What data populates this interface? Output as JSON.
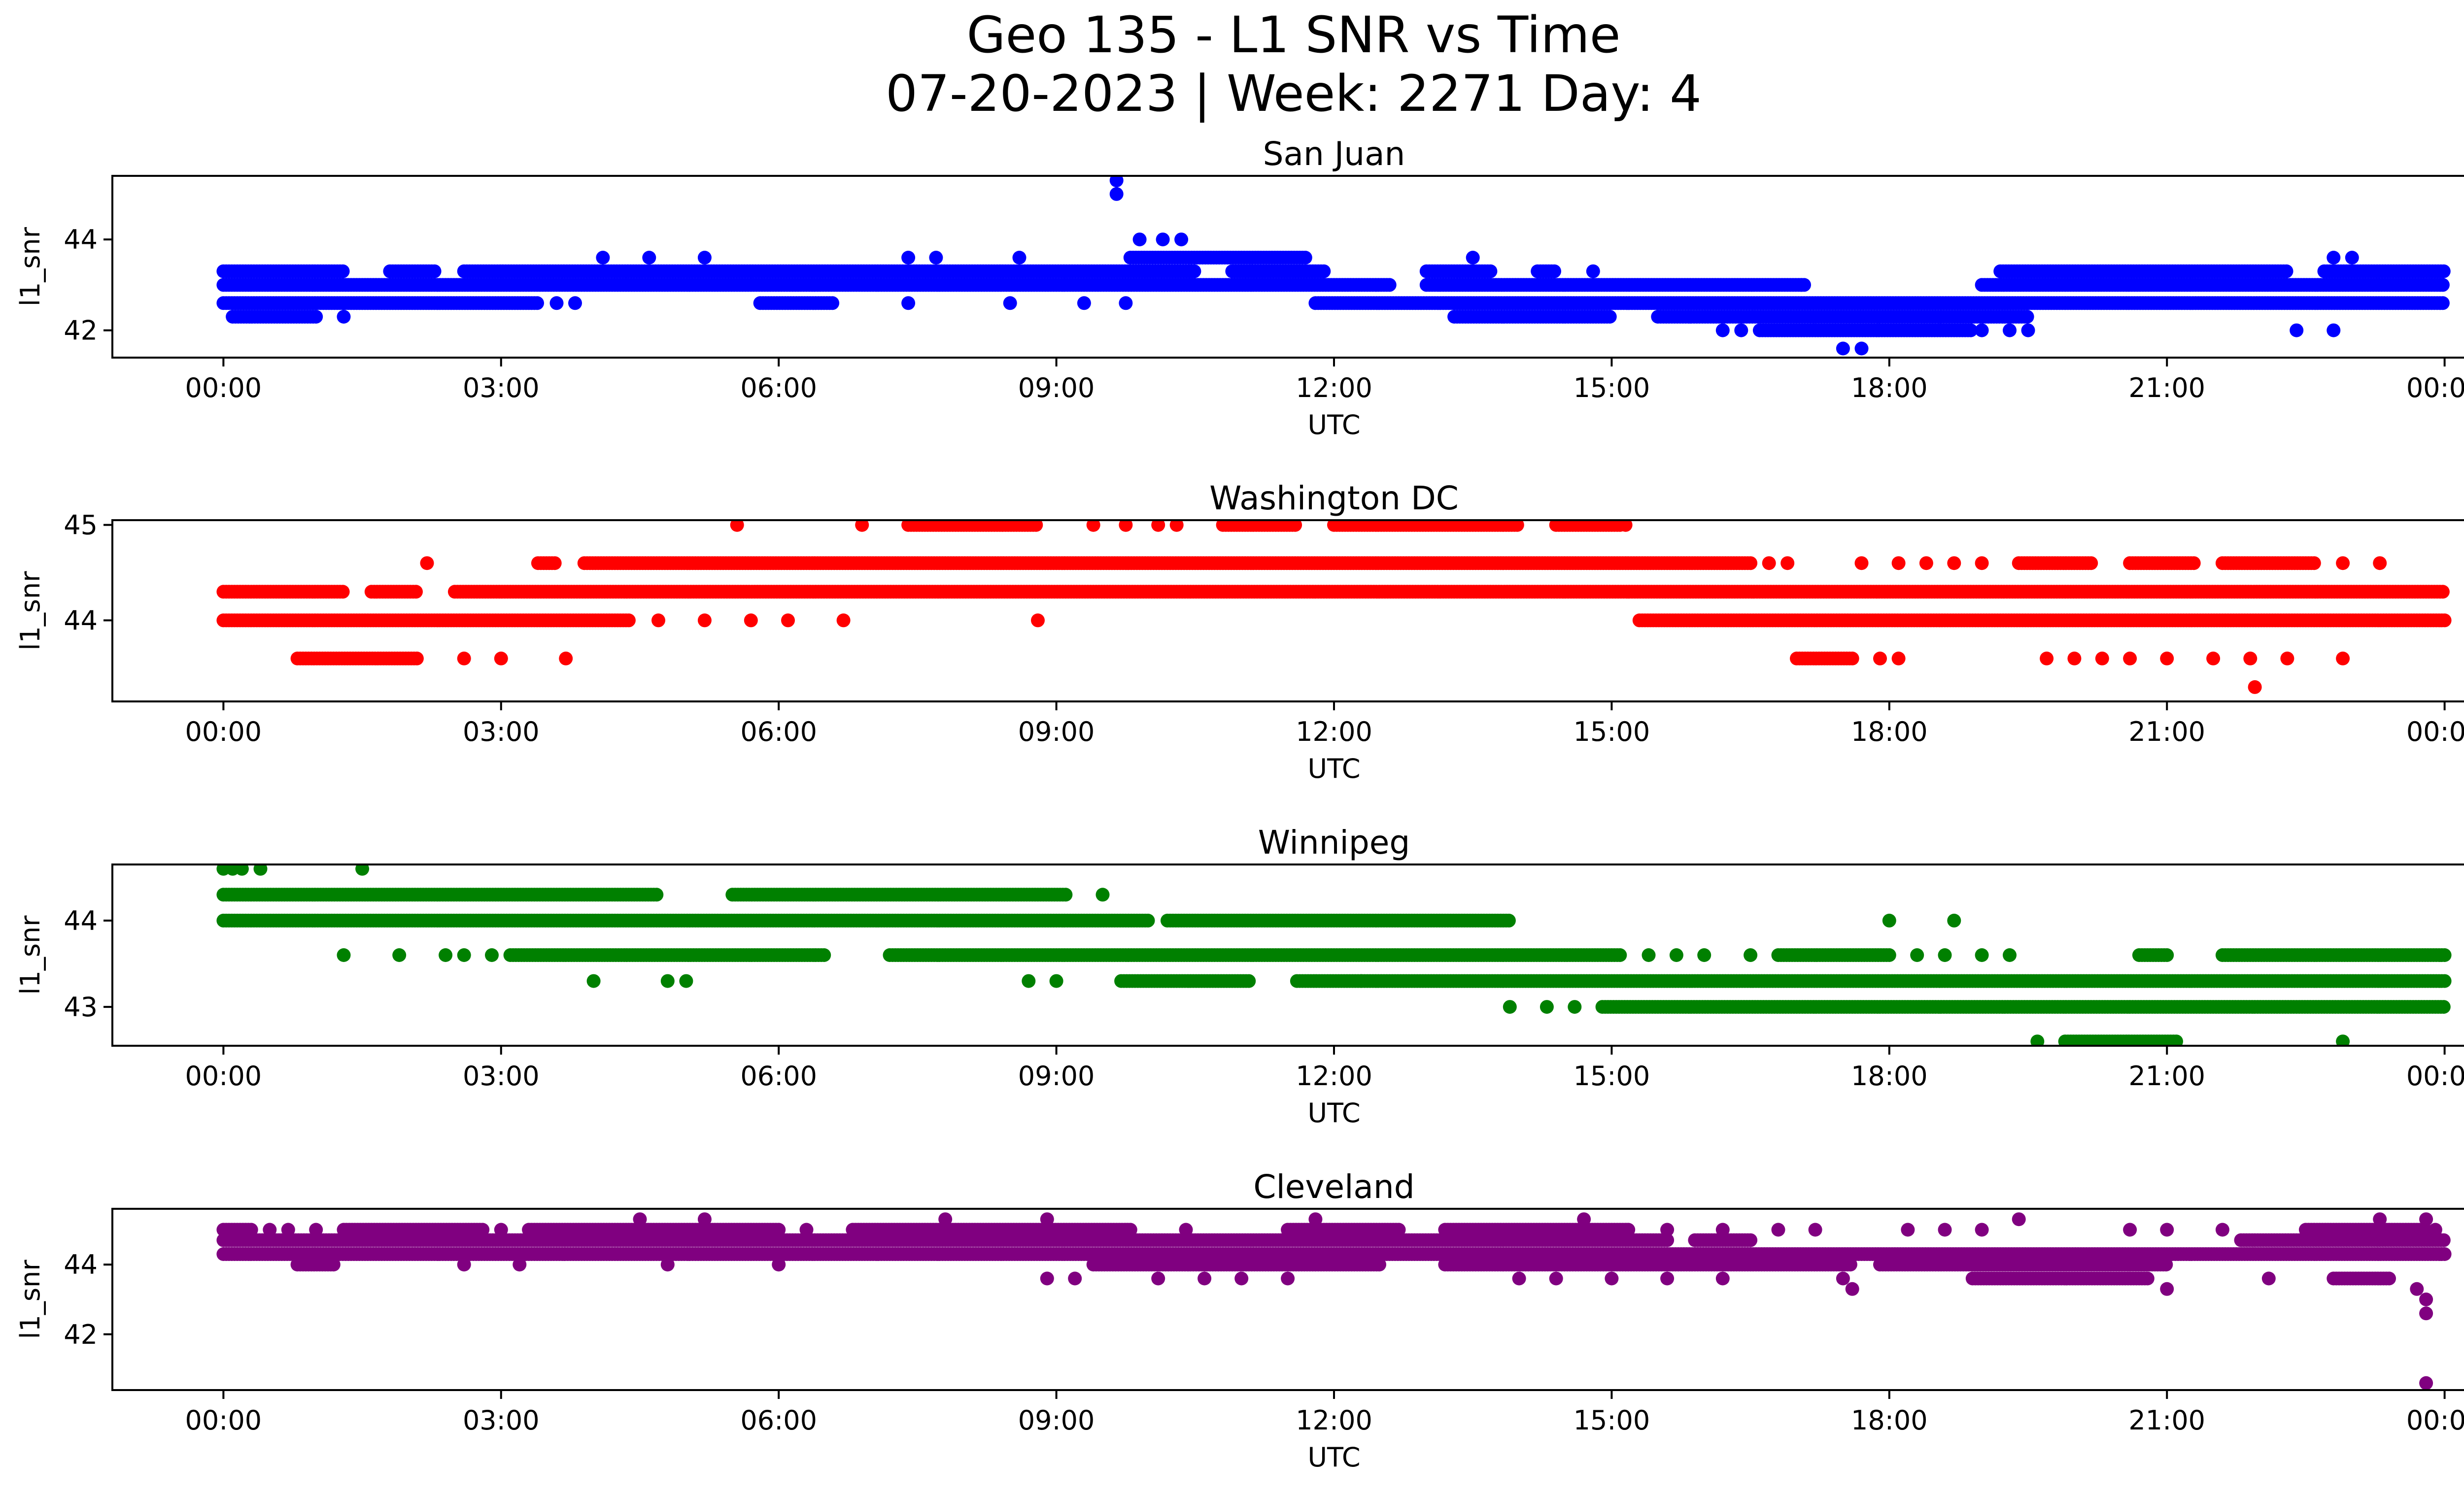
{
  "figure": {
    "title_line1": "Geo 135 - L1 SNR vs Time",
    "title_line2": "07-20-2023 | Week: 2271 Day: 4"
  },
  "chart_data": [
    {
      "type": "scatter",
      "title": "San Juan",
      "xlabel": "UTC",
      "ylabel": "l1_snr",
      "color": "#0000ff",
      "x_unit": "hours UTC",
      "xlim_hours": [
        -1.2,
        25.2
      ],
      "ylim": [
        41.4,
        45.4
      ],
      "yticks": [
        42,
        44
      ],
      "xticklabels": [
        "00:00",
        "03:00",
        "06:00",
        "09:00",
        "12:00",
        "15:00",
        "18:00",
        "21:00",
        "00:00"
      ],
      "bands": [
        {
          "y": 43.3,
          "segments": [
            [
              0.0,
              1.3
            ],
            [
              1.8,
              2.3
            ],
            [
              2.6,
              10.5
            ],
            [
              10.9,
              11.9
            ],
            [
              13.0,
              13.7
            ],
            [
              14.2,
              14.4
            ],
            [
              19.2,
              22.3
            ],
            [
              22.7,
              24.0
            ]
          ]
        },
        {
          "y": 43.0,
          "segments": [
            [
              0.0,
              12.6
            ],
            [
              13.0,
              17.1
            ],
            [
              19.0,
              24.0
            ]
          ]
        },
        {
          "y": 42.6,
          "segments": [
            [
              0.0,
              3.4
            ],
            [
              5.8,
              6.6
            ],
            [
              11.8,
              24.0
            ]
          ]
        },
        {
          "y": 42.3,
          "segments": [
            [
              0.1,
              1.0
            ],
            [
              13.3,
              15.0
            ],
            [
              15.5,
              19.5
            ]
          ]
        },
        {
          "y": 42.0,
          "segments": [
            [
              16.6,
              18.9
            ]
          ]
        },
        {
          "y": 43.6,
          "segments": [
            [
              9.8,
              11.7
            ]
          ]
        }
      ],
      "points": [
        {
          "x": 9.65,
          "y": 45.3
        },
        {
          "x": 9.65,
          "y": 45.0
        },
        {
          "x": 10.15,
          "y": 44.0
        },
        {
          "x": 10.35,
          "y": 44.0
        },
        {
          "x": 9.9,
          "y": 44.0
        },
        {
          "x": 4.1,
          "y": 43.6
        },
        {
          "x": 4.6,
          "y": 43.6
        },
        {
          "x": 5.2,
          "y": 43.6
        },
        {
          "x": 7.4,
          "y": 43.6
        },
        {
          "x": 7.7,
          "y": 43.6
        },
        {
          "x": 8.6,
          "y": 43.6
        },
        {
          "x": 13.5,
          "y": 43.6
        },
        {
          "x": 22.8,
          "y": 43.6
        },
        {
          "x": 23.0,
          "y": 43.6
        },
        {
          "x": 14.8,
          "y": 43.3
        },
        {
          "x": 3.6,
          "y": 42.6
        },
        {
          "x": 3.8,
          "y": 42.6
        },
        {
          "x": 7.4,
          "y": 42.6
        },
        {
          "x": 8.5,
          "y": 42.6
        },
        {
          "x": 9.3,
          "y": 42.6
        },
        {
          "x": 9.75,
          "y": 42.6
        },
        {
          "x": 1.3,
          "y": 42.3
        },
        {
          "x": 16.2,
          "y": 42.0
        },
        {
          "x": 16.4,
          "y": 42.0
        },
        {
          "x": 19.0,
          "y": 42.0
        },
        {
          "x": 19.3,
          "y": 42.0
        },
        {
          "x": 19.5,
          "y": 42.0
        },
        {
          "x": 22.4,
          "y": 42.0
        },
        {
          "x": 22.8,
          "y": 42.0
        },
        {
          "x": 17.5,
          "y": 41.6
        },
        {
          "x": 17.7,
          "y": 41.6
        },
        {
          "x": 17.05,
          "y": 43.0
        }
      ]
    },
    {
      "type": "scatter",
      "title": "Washington DC",
      "xlabel": "UTC",
      "ylabel": "l1_snr",
      "color": "#ff0000",
      "x_unit": "hours UTC",
      "xlim_hours": [
        -1.2,
        25.2
      ],
      "ylim": [
        43.15,
        45.05
      ],
      "yticks": [
        44,
        45
      ],
      "xticklabels": [
        "00:00",
        "03:00",
        "06:00",
        "09:00",
        "12:00",
        "15:00",
        "18:00",
        "21:00",
        "00:00"
      ],
      "bands": [
        {
          "y": 45.0,
          "segments": [
            [
              7.4,
              8.8
            ],
            [
              10.8,
              11.6
            ],
            [
              12.0,
              14.0
            ],
            [
              14.4,
              15.1
            ]
          ]
        },
        {
          "y": 44.6,
          "segments": [
            [
              3.4,
              3.6
            ],
            [
              3.9,
              16.5
            ],
            [
              19.4,
              20.2
            ],
            [
              20.6,
              21.3
            ],
            [
              21.6,
              22.6
            ]
          ]
        },
        {
          "y": 44.3,
          "segments": [
            [
              0.0,
              1.3
            ],
            [
              1.6,
              2.1
            ],
            [
              2.5,
              24.0
            ]
          ]
        },
        {
          "y": 44.0,
          "segments": [
            [
              0.0,
              4.4
            ],
            [
              15.3,
              24.0
            ]
          ]
        },
        {
          "y": 43.6,
          "segments": [
            [
              0.8,
              2.1
            ],
            [
              17.0,
              17.6
            ]
          ]
        }
      ],
      "points": [
        {
          "x": 5.55,
          "y": 45.0
        },
        {
          "x": 6.9,
          "y": 45.0
        },
        {
          "x": 9.4,
          "y": 45.0
        },
        {
          "x": 9.75,
          "y": 45.0
        },
        {
          "x": 10.1,
          "y": 45.0
        },
        {
          "x": 10.3,
          "y": 45.0
        },
        {
          "x": 15.15,
          "y": 45.0
        },
        {
          "x": 2.2,
          "y": 44.6
        },
        {
          "x": 16.7,
          "y": 44.6
        },
        {
          "x": 16.9,
          "y": 44.6
        },
        {
          "x": 17.7,
          "y": 44.6
        },
        {
          "x": 18.1,
          "y": 44.6
        },
        {
          "x": 18.4,
          "y": 44.6
        },
        {
          "x": 18.7,
          "y": 44.6
        },
        {
          "x": 19.0,
          "y": 44.6
        },
        {
          "x": 22.9,
          "y": 44.6
        },
        {
          "x": 23.3,
          "y": 44.6
        },
        {
          "x": 4.7,
          "y": 44.0
        },
        {
          "x": 5.2,
          "y": 44.0
        },
        {
          "x": 5.7,
          "y": 44.0
        },
        {
          "x": 6.1,
          "y": 44.0
        },
        {
          "x": 6.7,
          "y": 44.0
        },
        {
          "x": 8.8,
          "y": 44.0
        },
        {
          "x": 2.6,
          "y": 43.6
        },
        {
          "x": 3.0,
          "y": 43.6
        },
        {
          "x": 3.7,
          "y": 43.6
        },
        {
          "x": 17.9,
          "y": 43.6
        },
        {
          "x": 18.1,
          "y": 43.6
        },
        {
          "x": 19.7,
          "y": 43.6
        },
        {
          "x": 20.0,
          "y": 43.6
        },
        {
          "x": 20.3,
          "y": 43.6
        },
        {
          "x": 20.6,
          "y": 43.6
        },
        {
          "x": 21.0,
          "y": 43.6
        },
        {
          "x": 21.5,
          "y": 43.6
        },
        {
          "x": 21.9,
          "y": 43.6
        },
        {
          "x": 22.3,
          "y": 43.6
        },
        {
          "x": 22.9,
          "y": 43.6
        },
        {
          "x": 21.95,
          "y": 43.3
        }
      ]
    },
    {
      "type": "scatter",
      "title": "Winnipeg",
      "xlabel": "UTC",
      "ylabel": "l1_snr",
      "color": "#008000",
      "x_unit": "hours UTC",
      "xlim_hours": [
        -1.2,
        25.2
      ],
      "ylim": [
        42.55,
        44.65
      ],
      "yticks": [
        43,
        44
      ],
      "xticklabels": [
        "00:00",
        "03:00",
        "06:00",
        "09:00",
        "12:00",
        "15:00",
        "18:00",
        "21:00",
        "00:00"
      ],
      "bands": [
        {
          "y": 44.3,
          "segments": [
            [
              0.0,
              4.7
            ],
            [
              5.5,
              9.1
            ]
          ]
        },
        {
          "y": 44.0,
          "segments": [
            [
              0.0,
              10.0
            ],
            [
              10.2,
              13.9
            ]
          ]
        },
        {
          "y": 43.6,
          "segments": [
            [
              3.1,
              6.5
            ],
            [
              7.2,
              15.1
            ],
            [
              16.8,
              18.0
            ],
            [
              20.7,
              21.0
            ],
            [
              21.6,
              24.0
            ]
          ]
        },
        {
          "y": 43.3,
          "segments": [
            [
              9.7,
              11.1
            ],
            [
              11.6,
              12.3
            ],
            [
              12.3,
              24.0
            ]
          ]
        },
        {
          "y": 43.0,
          "segments": [
            [
              14.9,
              24.0
            ]
          ]
        },
        {
          "y": 42.6,
          "segments": [
            [
              19.9,
              21.1
            ]
          ]
        }
      ],
      "points": [
        {
          "x": 0.0,
          "y": 44.6
        },
        {
          "x": 0.1,
          "y": 44.6
        },
        {
          "x": 0.2,
          "y": 44.6
        },
        {
          "x": 0.4,
          "y": 44.6
        },
        {
          "x": 1.5,
          "y": 44.6
        },
        {
          "x": 9.5,
          "y": 44.3
        },
        {
          "x": 18.0,
          "y": 44.0
        },
        {
          "x": 18.7,
          "y": 44.0
        },
        {
          "x": 1.3,
          "y": 43.6
        },
        {
          "x": 1.9,
          "y": 43.6
        },
        {
          "x": 2.4,
          "y": 43.6
        },
        {
          "x": 2.6,
          "y": 43.6
        },
        {
          "x": 2.9,
          "y": 43.6
        },
        {
          "x": 15.4,
          "y": 43.6
        },
        {
          "x": 15.7,
          "y": 43.6
        },
        {
          "x": 16.0,
          "y": 43.6
        },
        {
          "x": 16.5,
          "y": 43.6
        },
        {
          "x": 18.3,
          "y": 43.6
        },
        {
          "x": 18.6,
          "y": 43.6
        },
        {
          "x": 19.0,
          "y": 43.6
        },
        {
          "x": 19.3,
          "y": 43.6
        },
        {
          "x": 4.0,
          "y": 43.3
        },
        {
          "x": 4.8,
          "y": 43.3
        },
        {
          "x": 5.0,
          "y": 43.3
        },
        {
          "x": 8.7,
          "y": 43.3
        },
        {
          "x": 9.0,
          "y": 43.3
        },
        {
          "x": 13.9,
          "y": 43.0
        },
        {
          "x": 14.3,
          "y": 43.0
        },
        {
          "x": 14.6,
          "y": 43.0
        },
        {
          "x": 19.6,
          "y": 42.6
        },
        {
          "x": 22.9,
          "y": 42.6
        }
      ]
    },
    {
      "type": "scatter",
      "title": "Cleveland",
      "xlabel": "UTC",
      "ylabel": "l1_snr",
      "color": "#800080",
      "x_unit": "hours UTC",
      "xlim_hours": [
        -1.2,
        25.2
      ],
      "ylim": [
        40.4,
        45.6
      ],
      "yticks": [
        42,
        44
      ],
      "xticklabels": [
        "00:00",
        "03:00",
        "06:00",
        "09:00",
        "12:00",
        "15:00",
        "18:00",
        "21:00",
        "00:00"
      ],
      "bands": [
        {
          "y": 45.0,
          "segments": [
            [
              0.0,
              0.3
            ],
            [
              1.3,
              2.8
            ],
            [
              3.3,
              6.0
            ],
            [
              6.8,
              9.8
            ],
            [
              11.5,
              12.7
            ],
            [
              13.2,
              15.2
            ],
            [
              22.5,
              23.8
            ]
          ]
        },
        {
          "y": 44.7,
          "segments": [
            [
              0.0,
              15.6
            ],
            [
              15.9,
              16.5
            ],
            [
              21.8,
              24.0
            ]
          ]
        },
        {
          "y": 44.3,
          "segments": [
            [
              0.0,
              24.0
            ]
          ]
        },
        {
          "y": 44.0,
          "segments": [
            [
              0.8,
              1.2
            ],
            [
              9.4,
              12.5
            ],
            [
              13.2,
              17.6
            ],
            [
              17.9,
              21.0
            ]
          ]
        },
        {
          "y": 43.6,
          "segments": [
            [
              18.9,
              20.8
            ],
            [
              22.8,
              23.4
            ]
          ]
        }
      ],
      "points": [
        {
          "x": 0.5,
          "y": 45.0
        },
        {
          "x": 0.7,
          "y": 45.0
        },
        {
          "x": 1.0,
          "y": 45.0
        },
        {
          "x": 3.0,
          "y": 45.0
        },
        {
          "x": 6.3,
          "y": 45.0
        },
        {
          "x": 10.4,
          "y": 45.0
        },
        {
          "x": 15.6,
          "y": 45.0
        },
        {
          "x": 16.2,
          "y": 45.0
        },
        {
          "x": 16.8,
          "y": 45.0
        },
        {
          "x": 17.2,
          "y": 45.0
        },
        {
          "x": 18.2,
          "y": 45.0
        },
        {
          "x": 18.6,
          "y": 45.0
        },
        {
          "x": 19.0,
          "y": 45.0
        },
        {
          "x": 20.6,
          "y": 45.0
        },
        {
          "x": 21.0,
          "y": 45.0
        },
        {
          "x": 21.6,
          "y": 45.0
        },
        {
          "x": 23.9,
          "y": 45.0
        },
        {
          "x": 4.5,
          "y": 45.3
        },
        {
          "x": 5.2,
          "y": 45.3
        },
        {
          "x": 7.8,
          "y": 45.3
        },
        {
          "x": 8.9,
          "y": 45.3
        },
        {
          "x": 11.8,
          "y": 45.3
        },
        {
          "x": 14.7,
          "y": 45.3
        },
        {
          "x": 19.4,
          "y": 45.3
        },
        {
          "x": 23.3,
          "y": 45.3
        },
        {
          "x": 23.8,
          "y": 45.3
        },
        {
          "x": 2.6,
          "y": 44.0
        },
        {
          "x": 3.2,
          "y": 44.0
        },
        {
          "x": 4.8,
          "y": 44.0
        },
        {
          "x": 6.0,
          "y": 44.0
        },
        {
          "x": 8.9,
          "y": 43.6
        },
        {
          "x": 9.2,
          "y": 43.6
        },
        {
          "x": 10.1,
          "y": 43.6
        },
        {
          "x": 10.6,
          "y": 43.6
        },
        {
          "x": 11.0,
          "y": 43.6
        },
        {
          "x": 11.5,
          "y": 43.6
        },
        {
          "x": 14.0,
          "y": 43.6
        },
        {
          "x": 14.4,
          "y": 43.6
        },
        {
          "x": 15.0,
          "y": 43.6
        },
        {
          "x": 15.6,
          "y": 43.6
        },
        {
          "x": 16.2,
          "y": 43.6
        },
        {
          "x": 17.5,
          "y": 43.6
        },
        {
          "x": 22.1,
          "y": 43.6
        },
        {
          "x": 17.6,
          "y": 43.3
        },
        {
          "x": 21.0,
          "y": 43.3
        },
        {
          "x": 23.7,
          "y": 43.3
        },
        {
          "x": 23.8,
          "y": 43.0
        },
        {
          "x": 23.8,
          "y": 42.6
        },
        {
          "x": 23.8,
          "y": 40.6
        }
      ]
    }
  ]
}
